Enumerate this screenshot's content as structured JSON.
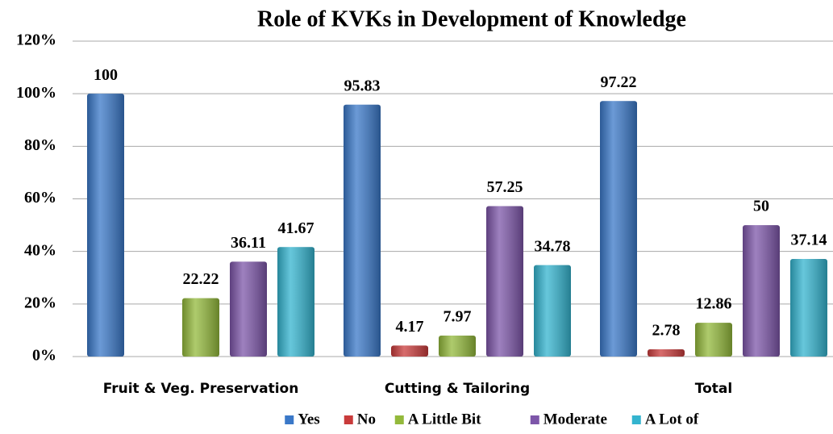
{
  "chart_data": {
    "type": "bar",
    "title": "Role of KVKs in Development of Knowledge",
    "categories": [
      "Fruit & Veg. Preservation",
      "Cutting & Tailoring",
      "Total"
    ],
    "series": [
      {
        "name": "Yes",
        "color": "#3a78c8",
        "values": [
          100,
          95.83,
          97.22
        ]
      },
      {
        "name": "No",
        "color": "#c93b3b",
        "values": [
          null,
          4.17,
          2.78
        ]
      },
      {
        "name": "A Little Bit",
        "color": "#93b93b",
        "values": [
          22.22,
          7.97,
          12.86
        ]
      },
      {
        "name": "Moderate",
        "color": "#7d56a9",
        "values": [
          36.11,
          57.25,
          50
        ]
      },
      {
        "name": "A Lot of",
        "color": "#34b4cf",
        "values": [
          41.67,
          34.78,
          37.14
        ]
      }
    ],
    "ylim": [
      0,
      120
    ],
    "yticks": [
      {
        "value": 0,
        "label": "0%"
      },
      {
        "value": 20,
        "label": "20%"
      },
      {
        "value": 40,
        "label": "40%"
      },
      {
        "value": 60,
        "label": "60%"
      },
      {
        "value": 80,
        "label": "80%"
      },
      {
        "value": 100,
        "label": "100%"
      },
      {
        "value": 120,
        "label": "120%"
      }
    ],
    "grid": true,
    "legend": "bottom"
  }
}
